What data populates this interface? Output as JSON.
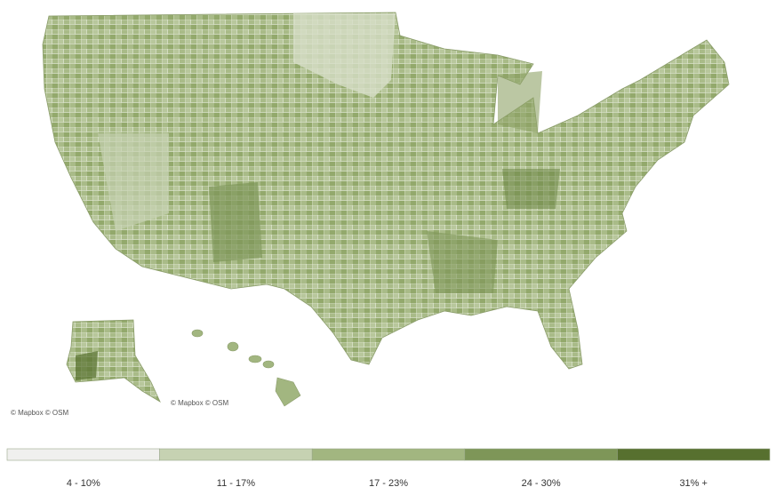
{
  "attributions": [
    "© Mapbox © OSM",
    "© Mapbox © OSM"
  ],
  "legend": {
    "bins": [
      {
        "label": "4 - 10%",
        "color": "#f0f0ee"
      },
      {
        "label": "11 - 17%",
        "color": "#c6d2b2"
      },
      {
        "label": "17 - 23%",
        "color": "#a2b680"
      },
      {
        "label": "24 - 30%",
        "color": "#7e9658"
      },
      {
        "label": "31% +",
        "color": "#57702f"
      }
    ]
  }
}
